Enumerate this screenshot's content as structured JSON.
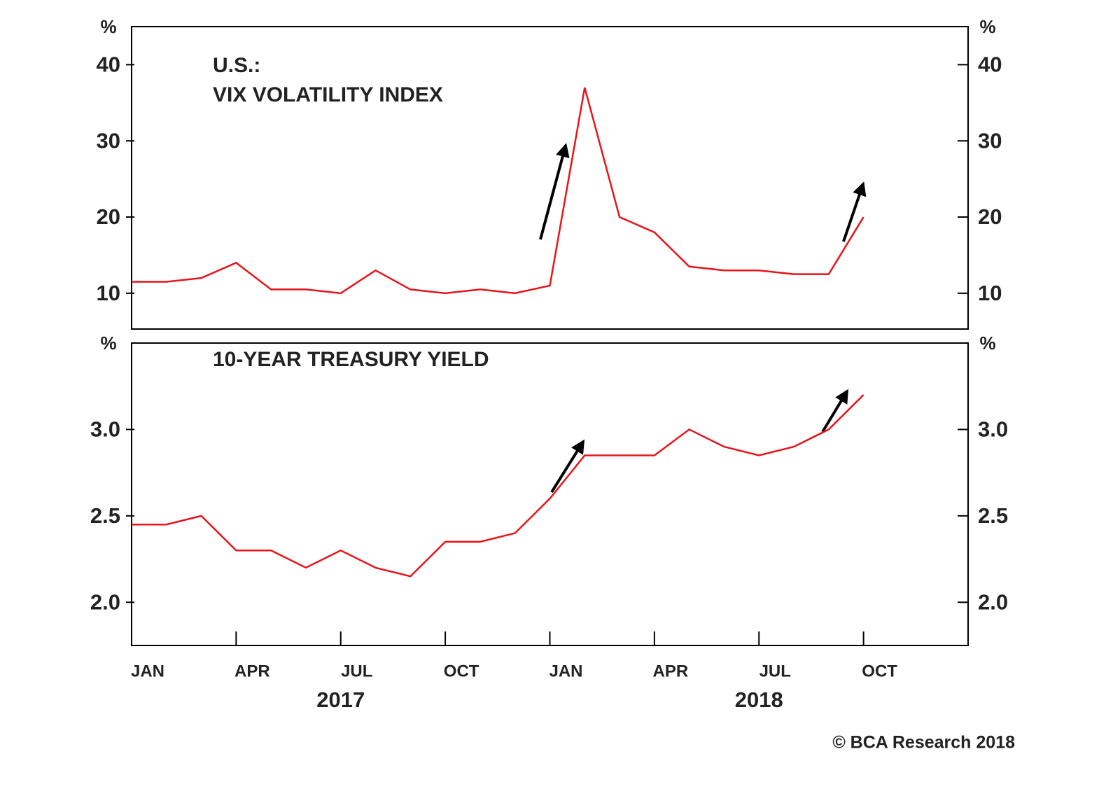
{
  "chart_data": [
    {
      "type": "line",
      "title_lines": [
        "U.S.:",
        "VIX VOLATILITY INDEX"
      ],
      "unit": "%",
      "x": [
        "2017-01",
        "2017-02",
        "2017-03",
        "2017-04",
        "2017-05",
        "2017-06",
        "2017-07",
        "2017-08",
        "2017-09",
        "2017-10",
        "2017-11",
        "2017-12",
        "2018-01",
        "2018-02",
        "2018-03",
        "2018-04",
        "2018-05",
        "2018-06",
        "2018-07",
        "2018-08",
        "2018-09",
        "2018-10"
      ],
      "values": [
        11.5,
        11.5,
        12,
        14,
        10.5,
        10.5,
        10,
        13,
        10.5,
        10,
        10.5,
        10,
        11,
        37,
        20,
        18,
        13.5,
        13,
        13,
        12.5,
        12.5,
        20
      ],
      "color": "#e8141a",
      "xlim": [
        "2017-01",
        "2019-01"
      ],
      "ylim": [
        5.3,
        45
      ],
      "yticks": [
        10,
        20,
        30,
        40
      ]
    },
    {
      "type": "line",
      "title_lines": [
        "10-YEAR TREASURY YIELD"
      ],
      "unit": "%",
      "x": [
        "2017-01",
        "2017-02",
        "2017-03",
        "2017-04",
        "2017-05",
        "2017-06",
        "2017-07",
        "2017-08",
        "2017-09",
        "2017-10",
        "2017-11",
        "2017-12",
        "2018-01",
        "2018-02",
        "2018-03",
        "2018-04",
        "2018-05",
        "2018-06",
        "2018-07",
        "2018-08",
        "2018-09",
        "2018-10"
      ],
      "values": [
        2.45,
        2.45,
        2.5,
        2.3,
        2.3,
        2.2,
        2.3,
        2.2,
        2.15,
        2.35,
        2.35,
        2.4,
        2.6,
        2.85,
        2.85,
        2.85,
        3.0,
        2.9,
        2.85,
        2.9,
        3.0,
        3.2
      ],
      "color": "#e8141a",
      "xlim": [
        "2017-01",
        "2019-01"
      ],
      "xticks": [
        {
          "value": "2017-01",
          "label": "JAN"
        },
        {
          "value": "2017-04",
          "label": "APR"
        },
        {
          "value": "2017-07",
          "label": "JUL"
        },
        {
          "value": "2017-10",
          "label": "OCT"
        },
        {
          "value": "2018-01",
          "label": "JAN"
        },
        {
          "value": "2018-04",
          "label": "APR"
        },
        {
          "value": "2018-07",
          "label": "JUL"
        },
        {
          "value": "2018-10",
          "label": "OCT"
        }
      ],
      "year_labels": [
        {
          "value": "2017-07",
          "label": "2017"
        },
        {
          "value": "2018-07",
          "label": "2018"
        }
      ],
      "ylim": [
        1.75,
        3.5
      ],
      "yticks": [
        {
          "value": 2,
          "label": "2.0"
        },
        2.5,
        {
          "value": 3,
          "label": "3.0"
        }
      ]
    }
  ],
  "source": "© BCA Research 2018"
}
